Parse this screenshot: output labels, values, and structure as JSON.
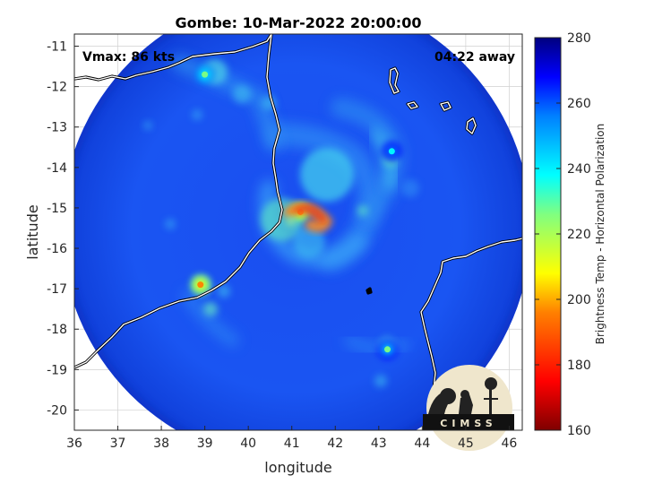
{
  "chart_data": {
    "type": "heatmap",
    "title": "Gombe: 10-Mar-2022 20:00:00",
    "xlabel": "longitude",
    "ylabel": "latitude",
    "xlim": [
      36,
      46.3
    ],
    "ylim": [
      -20.5,
      -10.7
    ],
    "xticks": [
      "36",
      "37",
      "38",
      "39",
      "40",
      "41",
      "42",
      "43",
      "44",
      "45",
      "46"
    ],
    "yticks": [
      "-11",
      "-12",
      "-13",
      "-14",
      "-15",
      "-16",
      "-17",
      "-18",
      "-19",
      "-20"
    ],
    "grid": true,
    "annotations": {
      "vmax": "Vmax: 86 kts",
      "away": "04:22 away",
      "logo": "CIMSS"
    },
    "colorbar": {
      "label": "Brightness Temp - Horizontal Polarization",
      "range": [
        160,
        280
      ],
      "ticks": [
        "280",
        "260",
        "240",
        "220",
        "200",
        "180",
        "160"
      ]
    },
    "swath": {
      "center": [
        41.1,
        -15.5
      ],
      "radius_deg_lon": 5.4
    },
    "storm_center": [
      41.1,
      -15.2
    ],
    "features": [
      {
        "lon": 41.2,
        "lat": -15.1,
        "temp": 190,
        "note": "eyewall"
      },
      {
        "lon": 38.9,
        "lat": -16.9,
        "temp": 185
      },
      {
        "lon": 39.0,
        "lat": -11.7,
        "temp": 215
      },
      {
        "lon": 43.2,
        "lat": -18.5,
        "temp": 225
      },
      {
        "lon": 43.3,
        "lat": -13.6,
        "temp": 230
      }
    ],
    "colormap": [
      "#7f0000",
      "#ff0000",
      "#ff7f00",
      "#ffff00",
      "#7fff7f",
      "#00ffff",
      "#007fff",
      "#0000ff",
      "#00007f"
    ]
  }
}
